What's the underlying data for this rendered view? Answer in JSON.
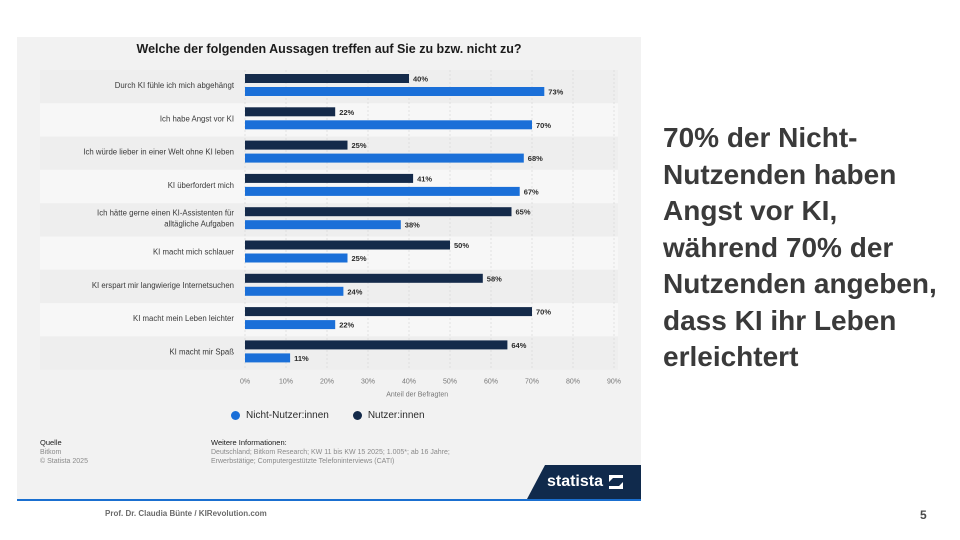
{
  "slide": {
    "headline": "70% der Nicht-Nutzenden haben Angst vor KI, während 70% der Nutzenden angeben, dass KI ihr Leben erleichtert",
    "author": "Prof. Dr. Claudia Bünte / KIRevolution.com",
    "page_number": "5"
  },
  "chart_data": {
    "type": "bar",
    "orientation": "horizontal",
    "title": "Welche der folgenden Aussagen treffen auf Sie zu bzw. nicht zu?",
    "xlabel": "Anteil der Befragten",
    "xlim": [
      0,
      90
    ],
    "xticks": [
      "0%",
      "10%",
      "20%",
      "30%",
      "40%",
      "50%",
      "60%",
      "70%",
      "80%",
      "90%"
    ],
    "legend_position": "bottom",
    "grid": true,
    "categories": [
      [
        "Durch KI fühle ich mich abgehängt"
      ],
      [
        "Ich habe Angst vor KI"
      ],
      [
        "Ich würde lieber in einer Welt ohne KI leben"
      ],
      [
        "KI überfordert mich"
      ],
      [
        "Ich hätte gerne einen KI-Assistenten für",
        "alltägliche Aufgaben"
      ],
      [
        "KI macht mich schlauer"
      ],
      [
        "KI erspart mir langwierige Internetsuchen"
      ],
      [
        "KI macht mein Leben leichter"
      ],
      [
        "KI macht mir Spaß"
      ]
    ],
    "series": [
      {
        "name": "Nutzer:innen",
        "color": "#142a4a",
        "values": [
          40,
          22,
          25,
          41,
          65,
          50,
          58,
          70,
          64
        ]
      },
      {
        "name": "Nicht-Nutzer:innen",
        "color": "#1a6fd8",
        "values": [
          73,
          70,
          68,
          67,
          38,
          25,
          24,
          22,
          11
        ]
      }
    ],
    "legend": [
      {
        "name": "Nicht-Nutzer:innen",
        "color": "#1a6fd8"
      },
      {
        "name": "Nutzer:innen",
        "color": "#142a4a"
      }
    ]
  },
  "source": {
    "heading": "Quelle",
    "lines": [
      "Bitkom",
      "© Statista 2025"
    ]
  },
  "info": {
    "heading": "Weitere Informationen:",
    "text": "Deutschland; Bitkom Research; KW 11 bis KW 15 2025; 1.005*; ab 16 Jahre; Erwerbstätige; Computergestützte Telefoninterviews (CATI)"
  },
  "logo": {
    "word": "statista"
  }
}
